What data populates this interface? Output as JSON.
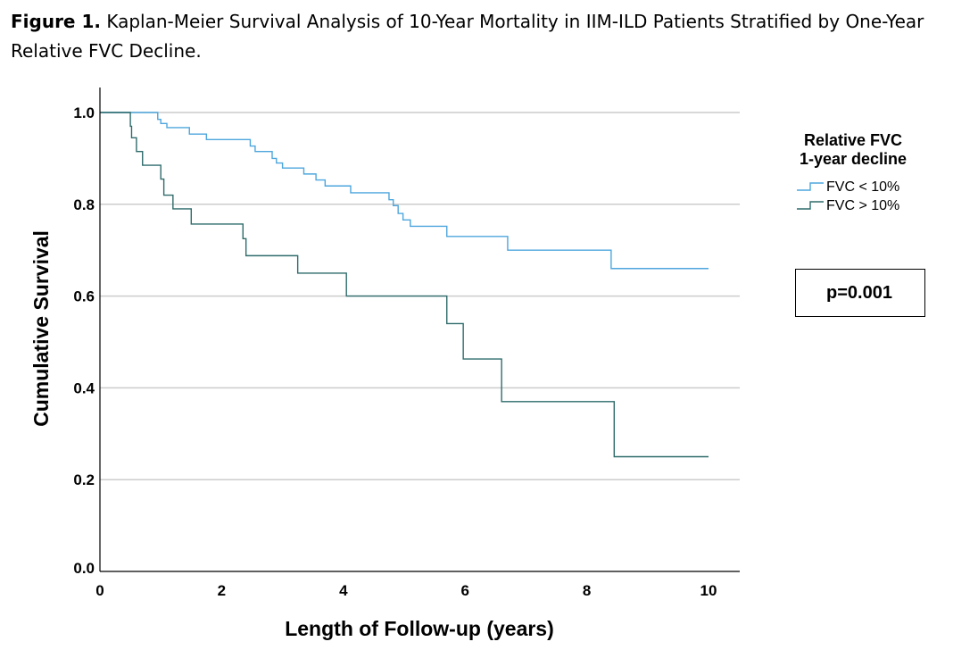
{
  "caption": {
    "label": "Figure 1.",
    "text": " Kaplan-Meier Survival Analysis of 10-Year Mortality in IIM-ILD Patients Stratified by One-Year Relative FVC Decline."
  },
  "p_value_text": "p=0.001",
  "colors": {
    "fvc_lt_10": "#4da6dd",
    "fvc_gt_10": "#2f6b6b",
    "grid": "#cccccc"
  },
  "chart_data": {
    "type": "line",
    "step": true,
    "xlabel": "Length of Follow-up (years)",
    "ylabel": "Cumulative Survival",
    "xlim": [
      0,
      10
    ],
    "ylim": [
      0,
      1.0
    ],
    "x_ticks": [
      "0",
      "2",
      "4",
      "6",
      "8",
      "10"
    ],
    "y_ticks": [
      "0.0",
      "0.2",
      "0.4",
      "0.6",
      "0.8",
      "1.0"
    ],
    "grid": "horizontal",
    "legend": {
      "title_line1": "Relative FVC",
      "title_line2": "1-year decline",
      "position": "right"
    },
    "series": [
      {
        "name": "FVC < 10%",
        "points": [
          [
            0,
            1.0
          ],
          [
            0.95,
            0.985
          ],
          [
            1.0,
            0.976
          ],
          [
            1.1,
            0.967
          ],
          [
            1.47,
            0.953
          ],
          [
            1.75,
            0.941
          ],
          [
            2.47,
            0.927
          ],
          [
            2.55,
            0.915
          ],
          [
            2.83,
            0.9
          ],
          [
            2.9,
            0.89
          ],
          [
            3.0,
            0.879
          ],
          [
            3.35,
            0.866
          ],
          [
            3.55,
            0.853
          ],
          [
            3.7,
            0.84
          ],
          [
            4.12,
            0.825
          ],
          [
            4.75,
            0.81
          ],
          [
            4.82,
            0.797
          ],
          [
            4.9,
            0.78
          ],
          [
            4.98,
            0.766
          ],
          [
            5.1,
            0.752
          ],
          [
            5.7,
            0.73
          ],
          [
            6.7,
            0.7
          ],
          [
            8.4,
            0.66
          ],
          [
            10.0,
            0.66
          ]
        ]
      },
      {
        "name": "FVC > 10%",
        "points": [
          [
            0,
            1.0
          ],
          [
            0.5,
            0.97
          ],
          [
            0.52,
            0.945
          ],
          [
            0.6,
            0.915
          ],
          [
            0.7,
            0.885
          ],
          [
            1.0,
            0.855
          ],
          [
            1.05,
            0.82
          ],
          [
            1.2,
            0.79
          ],
          [
            1.5,
            0.757
          ],
          [
            2.35,
            0.725
          ],
          [
            2.4,
            0.688
          ],
          [
            3.25,
            0.65
          ],
          [
            4.05,
            0.6
          ],
          [
            5.7,
            0.54
          ],
          [
            5.97,
            0.463
          ],
          [
            6.6,
            0.37
          ],
          [
            8.45,
            0.25
          ],
          [
            10.0,
            0.25
          ]
        ]
      }
    ]
  }
}
